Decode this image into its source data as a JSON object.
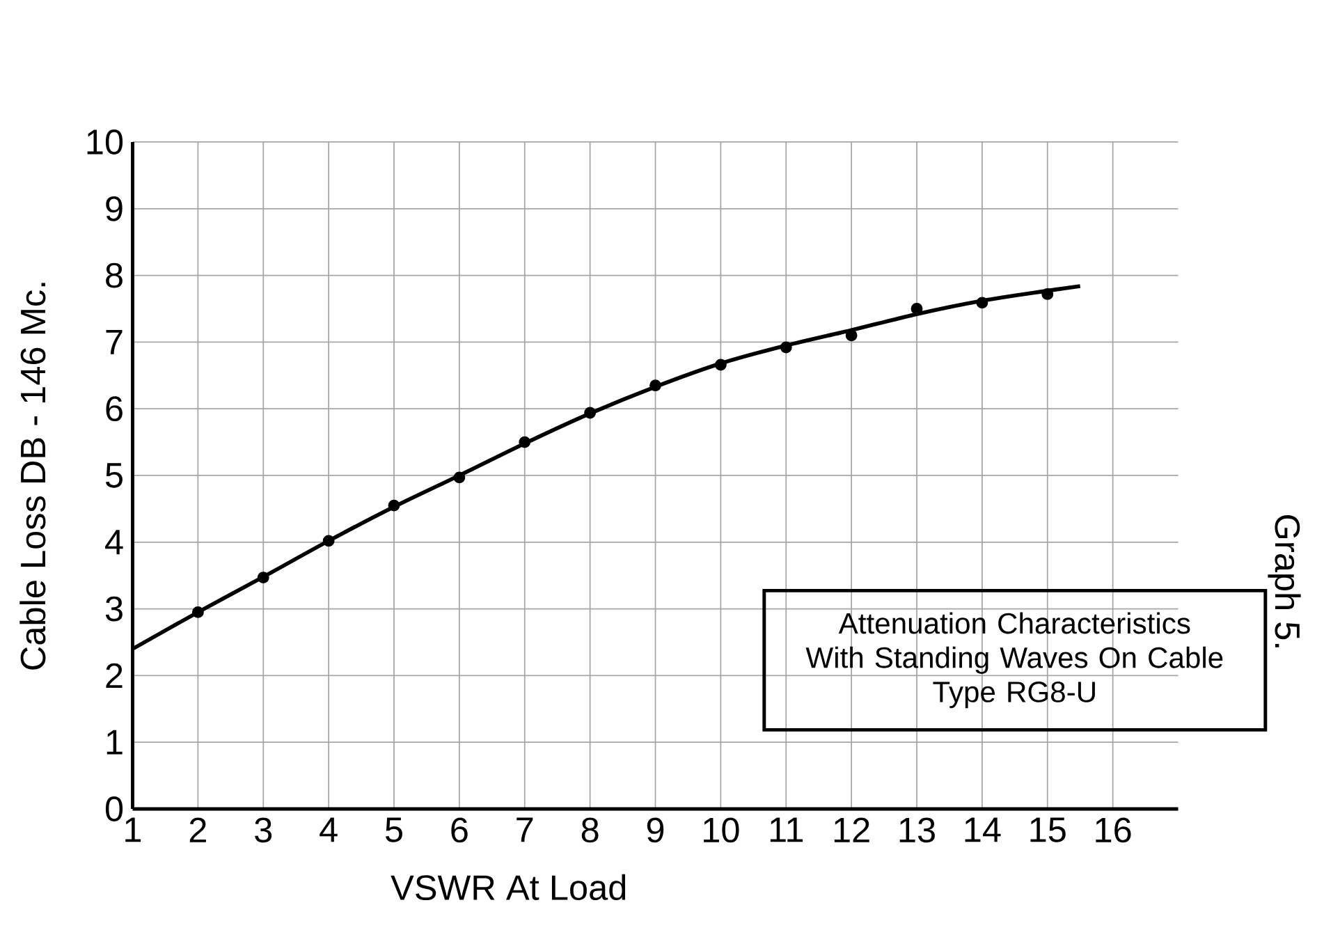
{
  "chart_data": {
    "type": "scatter",
    "title": "Attenuation Characteristics\nWith Standing Waves On Cable\nType RG8-U",
    "xlabel": "VSWR At Load",
    "ylabel": "Cable Loss DB - 146 Mc.",
    "annotations": [
      "Graph 5."
    ],
    "xlim": [
      1,
      17
    ],
    "ylim": [
      0,
      10
    ],
    "xticks": [
      1,
      2,
      3,
      4,
      5,
      6,
      7,
      8,
      9,
      10,
      11,
      12,
      13,
      14,
      15,
      16
    ],
    "yticks": [
      0,
      1,
      2,
      3,
      4,
      5,
      6,
      7,
      8,
      9,
      10
    ],
    "grid": true,
    "series": [
      {
        "marker": "circle",
        "color": "#000000",
        "x": [
          2,
          3,
          4,
          5,
          6,
          7,
          8,
          9,
          10,
          11,
          12,
          13,
          14,
          15
        ],
        "values": [
          2.95,
          3.47,
          4.02,
          4.55,
          4.97,
          5.5,
          5.94,
          6.35,
          6.66,
          6.92,
          7.1,
          7.5,
          7.59,
          7.72
        ]
      },
      {
        "type": "line",
        "marker": "none",
        "line_style": "solid",
        "color": "#000000",
        "x": [
          1,
          2,
          3,
          4,
          5,
          6,
          7,
          8,
          9,
          10,
          11,
          12,
          13,
          14,
          15,
          15.5
        ],
        "values": [
          2.4,
          2.95,
          3.48,
          4.02,
          4.53,
          5.0,
          5.48,
          5.93,
          6.33,
          6.68,
          6.95,
          7.18,
          7.42,
          7.62,
          7.77,
          7.84
        ]
      }
    ]
  }
}
